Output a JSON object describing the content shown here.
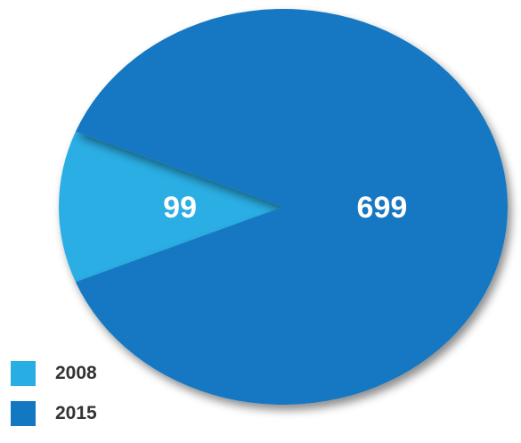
{
  "chart_data": {
    "type": "pie",
    "categories": [
      "2008",
      "2015"
    ],
    "values": [
      99,
      699
    ],
    "value_labels": [
      "99",
      "699"
    ],
    "colors": [
      "#29aee4",
      "#1378c2"
    ],
    "legend_position": "bottom-left",
    "title": ""
  }
}
